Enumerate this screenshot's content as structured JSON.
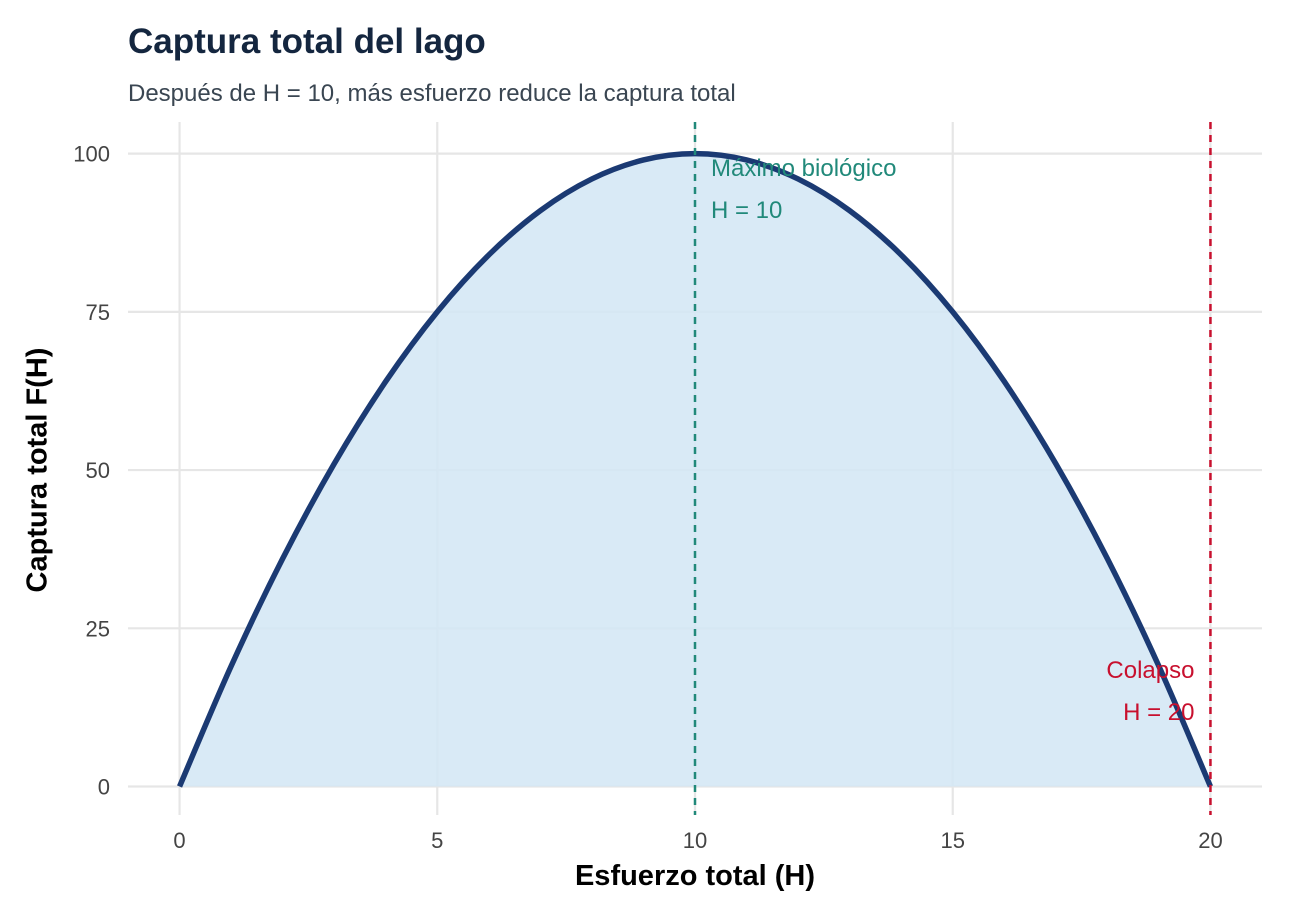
{
  "chart_data": {
    "type": "area",
    "title": "Captura total del lago",
    "subtitle": "Después de H = 10, más esfuerzo reduce la captura total",
    "xlabel": "Esfuerzo total (H)",
    "ylabel": "Captura total F(H)",
    "xlim": [
      -1,
      21
    ],
    "ylim": [
      -4.5,
      105
    ],
    "x_ticks": [
      0,
      5,
      10,
      15,
      20
    ],
    "y_ticks": [
      0,
      25,
      50,
      75,
      100
    ],
    "grid": true,
    "curve": {
      "x": [
        0,
        1,
        2,
        3,
        4,
        5,
        6,
        7,
        8,
        9,
        10,
        11,
        12,
        13,
        14,
        15,
        16,
        17,
        18,
        19,
        20
      ],
      "y": [
        0,
        19,
        36,
        51,
        64,
        75,
        84,
        91,
        96,
        99,
        100,
        99,
        96,
        91,
        84,
        75,
        64,
        51,
        36,
        19,
        0
      ]
    },
    "vlines": [
      {
        "x": 10,
        "color": "#21897a",
        "label_line1": "Máximo biológico",
        "label_line2": "H = 10"
      },
      {
        "x": 20,
        "color": "#c8102e",
        "label_line1": "Colapso",
        "label_line2": "H = 20"
      }
    ],
    "colors": {
      "line": "#1b3a73",
      "fill": "#d2e6f5",
      "grid": "#e6e6e6"
    }
  }
}
